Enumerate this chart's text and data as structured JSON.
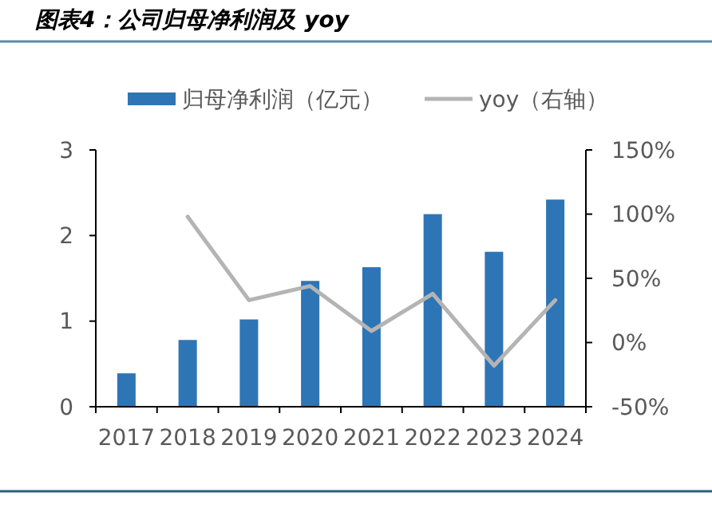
{
  "chart_data": {
    "type": "bar",
    "title": "图表4：公司归母净利润及 yoy",
    "categories": [
      "2017",
      "2018",
      "2019",
      "2020",
      "2021",
      "2022",
      "2023",
      "2024"
    ],
    "series": [
      {
        "name": "归母净利润（亿元）",
        "color": "#2e75b6",
        "values": [
          0.39,
          0.78,
          1.02,
          1.47,
          1.63,
          2.25,
          1.81,
          2.42
        ]
      },
      {
        "name": "yoy（右轴）",
        "type": "line",
        "axis": "y2",
        "color": "#b4b4b4",
        "values": [
          null,
          98,
          33,
          44,
          9,
          38,
          -18,
          33
        ]
      }
    ],
    "ylim": [
      0,
      3
    ],
    "yticks": [
      0,
      1,
      2,
      3
    ],
    "y2lim": [
      -50,
      150
    ],
    "y2ticks": [
      {
        "value": -50,
        "label": "-50%"
      },
      {
        "value": 0,
        "label": "0%"
      },
      {
        "value": 50,
        "label": "50%"
      },
      {
        "value": 100,
        "label": "100%"
      },
      {
        "value": 150,
        "label": "150%"
      }
    ],
    "legend": "top",
    "grid": false
  }
}
